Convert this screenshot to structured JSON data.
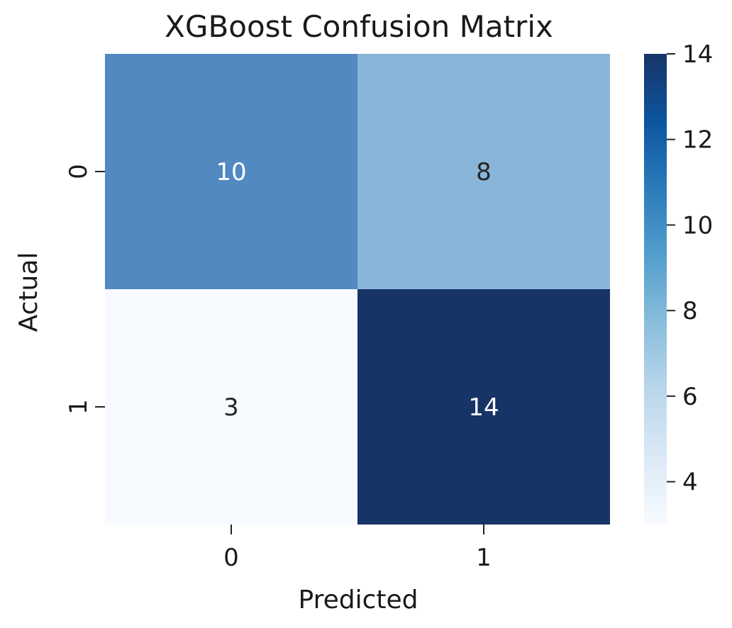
{
  "chart_data": {
    "type": "heatmap",
    "title": "XGBoost Confusion Matrix",
    "xlabel": "Predicted",
    "ylabel": "Actual",
    "x_categories": [
      "0",
      "1"
    ],
    "y_categories": [
      "0",
      "1"
    ],
    "matrix": [
      [
        10,
        8
      ],
      [
        3,
        14
      ]
    ],
    "colormap": "Blues",
    "colorbar": {
      "range": [
        3,
        14
      ],
      "ticks": [
        4,
        6,
        8,
        10,
        12,
        14
      ]
    },
    "cell_colors": [
      [
        "#5289c1",
        "#89b6d8"
      ],
      [
        "#f7fbff",
        "#173466"
      ]
    ],
    "cell_text_colors": [
      [
        "#ffffff",
        "#262626"
      ],
      [
        "#262626",
        "#ffffff"
      ]
    ],
    "colorbar_stops": [
      "#f7fbff",
      "#dbe9f6",
      "#bad6eb",
      "#89bedc",
      "#539ecd",
      "#2b7bba",
      "#0b559f",
      "#173466"
    ]
  }
}
